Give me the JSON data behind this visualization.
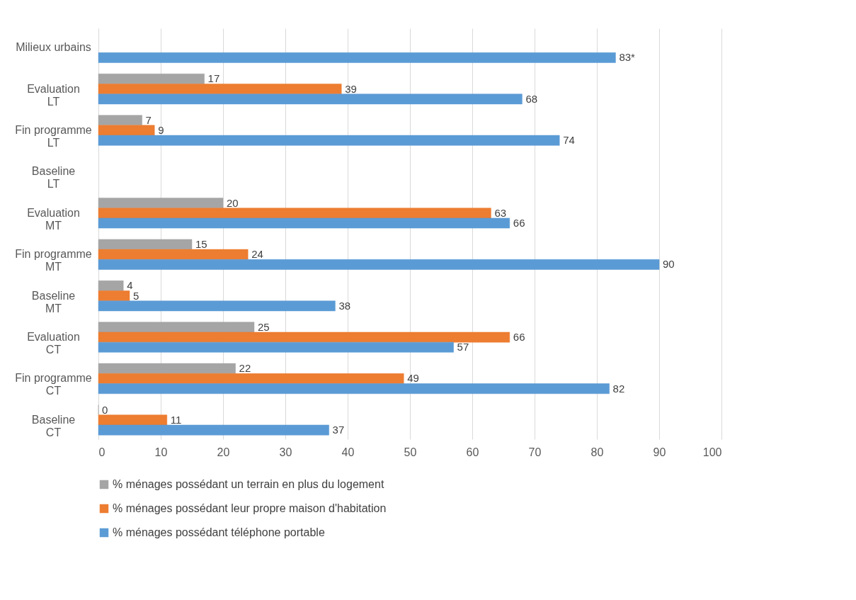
{
  "chart_data": {
    "type": "bar",
    "orientation": "horizontal",
    "categories": [
      "Milieux urbains",
      "Evaluation\nLT",
      "Fin programme\nLT",
      "Baseline\nLT",
      "Evaluation\nMT",
      "Fin programme\nMT",
      "Baseline\nMT",
      "Evaluation\nCT",
      "Fin programme\nCT",
      "Baseline\nCT"
    ],
    "series": [
      {
        "name": "% ménages possédant un terrain en plus du logement",
        "color": "#a5a5a5",
        "values": [
          null,
          17,
          7,
          null,
          20,
          15,
          4,
          25,
          22,
          0
        ],
        "value_labels": [
          null,
          "17",
          "7",
          null,
          "20",
          "15",
          "4",
          "25",
          "22",
          "0"
        ]
      },
      {
        "name": "% ménages possédant leur propre maison d'habitation",
        "color": "#ed7d31",
        "values": [
          null,
          39,
          9,
          null,
          63,
          24,
          5,
          66,
          49,
          11
        ],
        "value_labels": [
          null,
          "39",
          "9",
          null,
          "63",
          "24",
          "5",
          "66",
          "49",
          "11"
        ]
      },
      {
        "name": "% ménages possédant téléphone portable",
        "color": "#5b9bd5",
        "values": [
          83,
          68,
          74,
          null,
          66,
          90,
          38,
          57,
          82,
          37
        ],
        "value_labels": [
          "83*",
          "68",
          "74",
          null,
          "66",
          "90",
          "38",
          "57",
          "82",
          "37"
        ]
      }
    ],
    "xlim": [
      0,
      100
    ],
    "xticks": [
      0,
      10,
      20,
      30,
      40,
      50,
      60,
      70,
      80,
      90,
      100
    ],
    "grid": "x",
    "legend": "bottom"
  }
}
